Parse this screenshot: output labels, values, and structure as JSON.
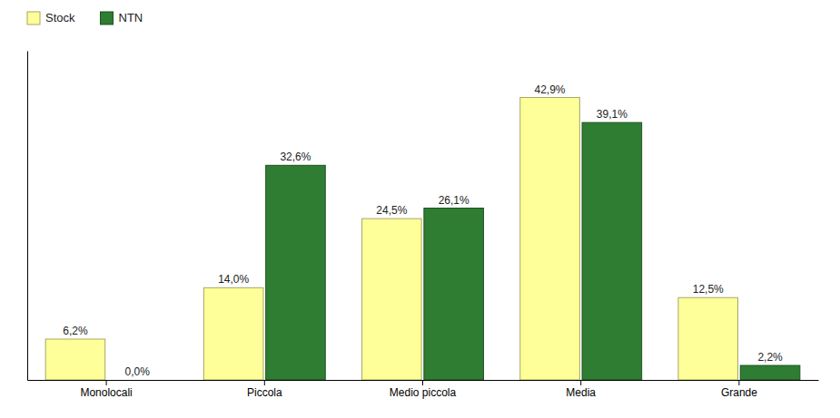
{
  "chart_data": {
    "type": "bar",
    "categories": [
      "Monolocali",
      "Piccola",
      "Medio piccola",
      "Media",
      "Grande"
    ],
    "series": [
      {
        "name": "Stock",
        "color": "#FFFF99",
        "values": [
          6.2,
          14.0,
          24.5,
          42.9,
          12.5
        ],
        "value_labels": [
          "6,2%",
          "14,0%",
          "24,5%",
          "42,9%",
          "12,5%"
        ]
      },
      {
        "name": "NTN",
        "color": "#2E7D32",
        "values": [
          0.0,
          32.6,
          26.1,
          39.1,
          2.2
        ],
        "value_labels": [
          "0,0%",
          "32,6%",
          "26,1%",
          "39,1%",
          "2,2%"
        ]
      }
    ],
    "ylim": [
      0,
      50
    ],
    "tick_labels": "x",
    "data_labels": true,
    "legend": "upper-left"
  }
}
